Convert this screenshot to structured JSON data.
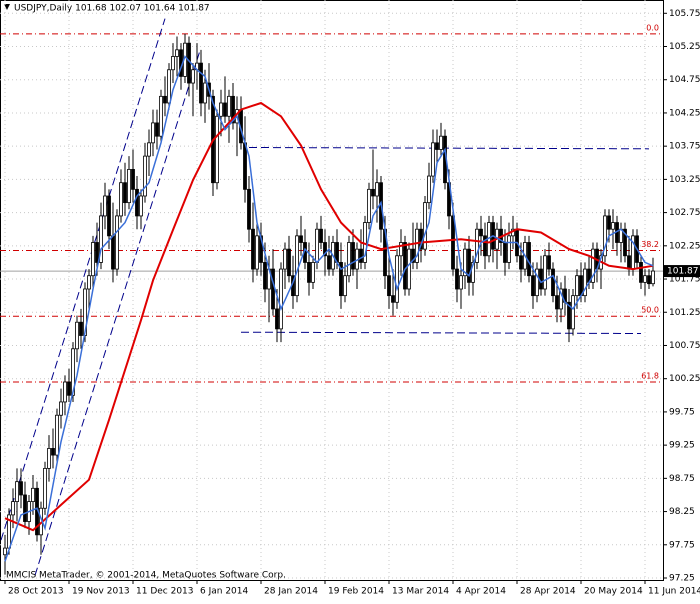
{
  "chart_data": {
    "type": "candlestick",
    "title": "USDJPY,Daily  101.68 102.07 101.64 101.87",
    "footer": "MMCIS MetaTrader, © 2001-2014, MetaQuotes Software Corp.",
    "ylim": [
      97.22,
      105.95
    ],
    "xlim": [
      -1.25,
      164.5
    ],
    "yticks": [
      97.25,
      97.75,
      98.25,
      98.75,
      99.25,
      99.75,
      100.25,
      100.75,
      101.25,
      101.75,
      102.25,
      102.75,
      103.25,
      103.75,
      104.25,
      104.75,
      105.25,
      105.75
    ],
    "xticks": [
      {
        "value": 0,
        "label": "28 Oct 2013"
      },
      {
        "value": 16,
        "label": "19 Nov 2013"
      },
      {
        "value": 32,
        "label": "11 Dec 2013"
      },
      {
        "value": 48,
        "label": "6 Jan 2014"
      },
      {
        "value": 64,
        "label": "28 Jan 2014"
      },
      {
        "value": 80,
        "label": "19 Feb 2014"
      },
      {
        "value": 96,
        "label": "13 Mar 2014"
      },
      {
        "value": 112,
        "label": "4 Apr 2014"
      },
      {
        "value": 128,
        "label": "28 Apr 2014"
      },
      {
        "value": 144,
        "label": "20 May 2014"
      },
      {
        "value": 160,
        "label": "11 Jun 2014"
      }
    ],
    "current_price": {
      "value": 101.87,
      "label": "101.87"
    },
    "fib_levels": [
      {
        "label": "0.0",
        "value": 105.44
      },
      {
        "label": "38.2",
        "value": 102.18
      },
      {
        "label": "50.0",
        "value": 101.19
      },
      {
        "label": "61.8",
        "value": 100.2
      }
    ],
    "fib_color": "#d00000",
    "trend_lines": [
      {
        "color": "#00008b",
        "points": [
          [
            -1,
            97.82
          ],
          [
            40,
            105.67
          ]
        ]
      },
      {
        "color": "#00008b",
        "points": [
          [
            7.5,
            97.29
          ],
          [
            48.75,
            105.19
          ]
        ]
      },
      {
        "color": "#00008b",
        "points": [
          [
            61,
            103.73
          ],
          [
            161,
            103.71
          ]
        ]
      },
      {
        "color": "#00008b",
        "points": [
          [
            59,
            100.95
          ],
          [
            159,
            100.93
          ]
        ]
      }
    ],
    "ma_lines": [
      {
        "color": "#e00000",
        "x": [
          0,
          7,
          14,
          21,
          26,
          30,
          34,
          37,
          42,
          47,
          52,
          59,
          64,
          69,
          74,
          79,
          84,
          89,
          94,
          104,
          114,
          121,
          128,
          134,
          141,
          146,
          151,
          157,
          162
        ],
        "values": [
          98.15,
          97.97,
          98.35,
          98.73,
          99.63,
          100.38,
          101.13,
          101.73,
          102.49,
          103.24,
          103.84,
          104.3,
          104.4,
          104.2,
          103.76,
          103.1,
          102.6,
          102.3,
          102.2,
          102.3,
          102.35,
          102.3,
          102.5,
          102.45,
          102.2,
          102.1,
          101.95,
          101.9,
          101.95
        ]
      },
      {
        "color": "#3a6fd8",
        "x": [
          0,
          4,
          8,
          10,
          14,
          18,
          22,
          24,
          27,
          30,
          33,
          36,
          39,
          42,
          45,
          48,
          50,
          52,
          55,
          58,
          61,
          63,
          66,
          69,
          72,
          75,
          78,
          81,
          84,
          87,
          90,
          92,
          94,
          96,
          98,
          100,
          103,
          106,
          108,
          110,
          112,
          114,
          116,
          119,
          122,
          125,
          128,
          131,
          134,
          137,
          140,
          142,
          145,
          148,
          151,
          154,
          157,
          160,
          162
        ],
        "values": [
          97.5,
          98.2,
          98.3,
          98.0,
          99.3,
          100.3,
          101.6,
          102.2,
          102.4,
          102.6,
          103.0,
          103.2,
          103.8,
          104.6,
          105.1,
          104.9,
          104.8,
          104.4,
          104.0,
          104.2,
          103.6,
          102.6,
          101.9,
          101.3,
          101.7,
          102.2,
          102.0,
          102.2,
          101.9,
          102.0,
          102.1,
          102.7,
          102.9,
          102.1,
          101.6,
          101.9,
          102.1,
          102.6,
          103.5,
          103.7,
          102.8,
          101.9,
          101.8,
          102.3,
          102.4,
          102.3,
          102.3,
          102.0,
          101.7,
          101.8,
          101.4,
          101.3,
          101.6,
          101.9,
          102.4,
          102.5,
          102.3,
          102.0,
          101.95
        ]
      }
    ],
    "candles": [
      [
        97.6,
        97.9,
        97.3,
        97.7
      ],
      [
        97.7,
        98.3,
        97.6,
        98.2
      ],
      [
        98.2,
        98.6,
        98.0,
        98.4
      ],
      [
        98.4,
        98.9,
        98.1,
        98.7
      ],
      [
        98.7,
        98.9,
        98.3,
        98.5
      ],
      [
        98.5,
        98.7,
        98.0,
        98.1
      ],
      [
        98.1,
        98.5,
        97.9,
        98.4
      ],
      [
        98.4,
        98.8,
        98.2,
        98.6
      ],
      [
        98.6,
        98.7,
        97.8,
        97.9
      ],
      [
        97.9,
        98.4,
        97.6,
        98.3
      ],
      [
        98.3,
        99.0,
        98.2,
        98.9
      ],
      [
        98.9,
        99.4,
        98.7,
        99.2
      ],
      [
        99.2,
        99.5,
        98.9,
        99.1
      ],
      [
        99.1,
        99.8,
        99.0,
        99.7
      ],
      [
        99.7,
        100.1,
        99.5,
        99.9
      ],
      [
        99.9,
        100.3,
        99.7,
        100.2
      ],
      [
        100.2,
        100.4,
        99.9,
        100.0
      ],
      [
        100.0,
        100.8,
        99.9,
        100.7
      ],
      [
        100.7,
        101.2,
        100.5,
        101.1
      ],
      [
        101.1,
        101.3,
        100.7,
        100.9
      ],
      [
        100.9,
        101.7,
        100.8,
        101.6
      ],
      [
        101.6,
        101.9,
        101.3,
        101.8
      ],
      [
        101.8,
        102.4,
        101.6,
        102.3
      ],
      [
        102.3,
        102.6,
        101.8,
        102.0
      ],
      [
        102.0,
        102.9,
        101.9,
        102.7
      ],
      [
        102.7,
        103.2,
        102.5,
        103.0
      ],
      [
        103.0,
        103.1,
        102.2,
        102.4
      ],
      [
        102.4,
        102.9,
        101.7,
        101.9
      ],
      [
        101.9,
        102.8,
        101.8,
        102.7
      ],
      [
        102.7,
        103.4,
        102.6,
        103.2
      ],
      [
        103.2,
        103.5,
        102.7,
        102.9
      ],
      [
        102.9,
        103.6,
        102.8,
        103.4
      ],
      [
        103.4,
        103.7,
        102.9,
        103.1
      ],
      [
        103.1,
        103.3,
        102.5,
        102.7
      ],
      [
        102.7,
        103.1,
        102.5,
        103.0
      ],
      [
        103.0,
        103.8,
        102.9,
        103.6
      ],
      [
        103.6,
        104.0,
        103.3,
        103.8
      ],
      [
        103.8,
        104.3,
        103.6,
        104.1
      ],
      [
        104.1,
        104.3,
        103.7,
        103.9
      ],
      [
        103.9,
        104.6,
        103.8,
        104.5
      ],
      [
        104.5,
        104.8,
        104.2,
        104.4
      ],
      [
        104.4,
        105.0,
        104.3,
        104.9
      ],
      [
        104.9,
        105.3,
        104.7,
        105.1
      ],
      [
        105.1,
        105.4,
        104.8,
        105.2
      ],
      [
        105.2,
        105.3,
        104.6,
        104.8
      ],
      [
        104.8,
        105.44,
        104.7,
        105.3
      ],
      [
        105.3,
        105.4,
        104.5,
        104.7
      ],
      [
        104.7,
        105.0,
        104.2,
        104.9
      ],
      [
        104.9,
        105.3,
        104.6,
        105.0
      ],
      [
        105.0,
        105.2,
        104.2,
        104.4
      ],
      [
        104.4,
        104.9,
        104.1,
        104.7
      ],
      [
        104.7,
        105.0,
        104.3,
        104.5
      ],
      [
        104.5,
        104.6,
        103.0,
        103.2
      ],
      [
        103.2,
        104.3,
        103.1,
        104.2
      ],
      [
        104.2,
        104.6,
        103.9,
        104.4
      ],
      [
        104.4,
        104.8,
        104.1,
        104.2
      ],
      [
        104.2,
        104.6,
        103.8,
        104.5
      ],
      [
        104.5,
        104.7,
        104.0,
        104.1
      ],
      [
        104.1,
        104.5,
        103.6,
        104.3
      ],
      [
        104.3,
        104.5,
        103.7,
        103.8
      ],
      [
        103.8,
        104.2,
        102.9,
        103.1
      ],
      [
        103.1,
        103.3,
        102.3,
        102.5
      ],
      [
        102.5,
        102.9,
        101.7,
        101.9
      ],
      [
        101.9,
        102.6,
        101.8,
        102.4
      ],
      [
        102.4,
        102.6,
        101.8,
        102.0
      ],
      [
        102.0,
        102.3,
        101.4,
        101.6
      ],
      [
        101.6,
        102.1,
        101.1,
        101.9
      ],
      [
        101.9,
        102.2,
        101.2,
        101.3
      ],
      [
        101.3,
        101.6,
        100.8,
        101.0
      ],
      [
        101.0,
        102.0,
        100.8,
        101.9
      ],
      [
        101.9,
        102.3,
        101.6,
        102.2
      ],
      [
        102.2,
        102.4,
        101.7,
        101.8
      ],
      [
        101.8,
        102.1,
        101.3,
        101.5
      ],
      [
        101.5,
        102.5,
        101.4,
        102.4
      ],
      [
        102.4,
        102.7,
        102.1,
        102.3
      ],
      [
        102.3,
        102.5,
        101.9,
        102.0
      ],
      [
        102.0,
        102.3,
        101.5,
        101.7
      ],
      [
        101.7,
        102.1,
        101.6,
        102.0
      ],
      [
        102.0,
        102.6,
        101.9,
        102.5
      ],
      [
        102.5,
        102.7,
        102.2,
        102.3
      ],
      [
        102.3,
        102.5,
        101.8,
        102.1
      ],
      [
        102.1,
        102.4,
        101.8,
        101.9
      ],
      [
        101.9,
        102.4,
        101.8,
        102.3
      ],
      [
        102.3,
        102.5,
        101.9,
        102.0
      ],
      [
        102.0,
        102.3,
        101.3,
        101.5
      ],
      [
        101.5,
        102.0,
        101.4,
        101.8
      ],
      [
        101.8,
        102.4,
        101.7,
        102.3
      ],
      [
        102.3,
        102.5,
        101.8,
        101.9
      ],
      [
        101.9,
        102.3,
        101.6,
        102.2
      ],
      [
        102.2,
        102.5,
        101.9,
        102.0
      ],
      [
        102.0,
        102.7,
        101.9,
        102.6
      ],
      [
        102.6,
        103.2,
        102.5,
        103.1
      ],
      [
        103.1,
        103.7,
        102.8,
        103.0
      ],
      [
        103.0,
        103.4,
        102.6,
        103.2
      ],
      [
        103.2,
        103.3,
        102.3,
        102.5
      ],
      [
        102.5,
        102.7,
        101.6,
        101.8
      ],
      [
        101.8,
        102.1,
        101.3,
        101.5
      ],
      [
        101.5,
        101.9,
        101.2,
        101.4
      ],
      [
        101.4,
        102.2,
        101.3,
        102.1
      ],
      [
        102.1,
        102.5,
        101.8,
        102.3
      ],
      [
        102.3,
        102.4,
        101.5,
        101.6
      ],
      [
        101.6,
        102.3,
        101.5,
        102.2
      ],
      [
        102.2,
        102.6,
        101.9,
        102.0
      ],
      [
        102.0,
        102.6,
        101.9,
        102.5
      ],
      [
        102.5,
        102.6,
        102.0,
        102.2
      ],
      [
        102.2,
        103.0,
        102.1,
        102.9
      ],
      [
        102.9,
        103.5,
        102.8,
        103.3
      ],
      [
        103.3,
        104.0,
        103.2,
        103.8
      ],
      [
        103.8,
        104.0,
        103.5,
        103.7
      ],
      [
        103.7,
        104.1,
        103.6,
        103.9
      ],
      [
        103.9,
        104.0,
        103.1,
        103.2
      ],
      [
        103.2,
        103.4,
        102.5,
        102.7
      ],
      [
        102.7,
        102.9,
        101.8,
        101.9
      ],
      [
        101.9,
        102.1,
        101.4,
        101.6
      ],
      [
        101.6,
        102.0,
        101.3,
        101.8
      ],
      [
        101.8,
        102.3,
        101.6,
        102.2
      ],
      [
        102.2,
        102.4,
        101.5,
        101.7
      ],
      [
        101.7,
        102.1,
        101.5,
        102.0
      ],
      [
        102.0,
        102.6,
        101.9,
        102.5
      ],
      [
        102.5,
        102.7,
        102.1,
        102.4
      ],
      [
        102.4,
        102.6,
        101.9,
        102.1
      ],
      [
        102.1,
        102.7,
        102.0,
        102.6
      ],
      [
        102.6,
        102.7,
        102.0,
        102.2
      ],
      [
        102.2,
        102.6,
        101.9,
        102.5
      ],
      [
        102.5,
        102.7,
        102.1,
        102.3
      ],
      [
        102.3,
        102.5,
        101.8,
        102.0
      ],
      [
        102.0,
        102.6,
        101.9,
        102.4
      ],
      [
        102.4,
        102.7,
        102.2,
        102.5
      ],
      [
        102.5,
        102.6,
        102.0,
        102.1
      ],
      [
        102.1,
        102.3,
        101.7,
        101.9
      ],
      [
        101.9,
        102.4,
        101.8,
        102.3
      ],
      [
        102.3,
        102.4,
        101.7,
        101.8
      ],
      [
        101.8,
        102.0,
        101.3,
        101.5
      ],
      [
        101.5,
        102.0,
        101.4,
        101.9
      ],
      [
        101.9,
        102.1,
        101.5,
        101.6
      ],
      [
        101.6,
        102.2,
        101.5,
        102.1
      ],
      [
        102.1,
        102.3,
        101.8,
        101.9
      ],
      [
        101.9,
        102.0,
        101.4,
        101.5
      ],
      [
        101.5,
        101.8,
        101.1,
        101.3
      ],
      [
        101.3,
        101.7,
        101.1,
        101.6
      ],
      [
        101.6,
        101.8,
        101.2,
        101.4
      ],
      [
        101.4,
        101.6,
        100.8,
        101.0
      ],
      [
        101.0,
        101.6,
        100.9,
        101.5
      ],
      [
        101.5,
        101.9,
        101.3,
        101.8
      ],
      [
        101.8,
        102.0,
        101.4,
        101.5
      ],
      [
        101.5,
        102.0,
        101.4,
        101.9
      ],
      [
        101.9,
        102.1,
        101.6,
        101.7
      ],
      [
        101.7,
        102.3,
        101.6,
        102.2
      ],
      [
        102.2,
        102.3,
        101.7,
        101.9
      ],
      [
        101.9,
        102.2,
        101.6,
        102.1
      ],
      [
        102.1,
        102.8,
        102.0,
        102.7
      ],
      [
        102.7,
        102.8,
        102.3,
        102.5
      ],
      [
        102.5,
        102.8,
        102.2,
        102.6
      ],
      [
        102.6,
        102.7,
        102.1,
        102.3
      ],
      [
        102.3,
        102.6,
        102.0,
        102.5
      ],
      [
        102.5,
        102.6,
        102.0,
        102.1
      ],
      [
        102.1,
        102.4,
        101.8,
        101.9
      ],
      [
        101.9,
        102.5,
        101.8,
        102.4
      ],
      [
        102.4,
        102.5,
        101.9,
        102.0
      ],
      [
        102.0,
        102.1,
        101.6,
        101.7
      ],
      [
        101.7,
        101.9,
        101.5,
        101.8
      ],
      [
        101.8,
        101.9,
        101.6,
        101.68
      ],
      [
        101.68,
        102.07,
        101.64,
        101.87
      ]
    ],
    "bull_color": "#ffffff",
    "bear_color": "#000000",
    "wick_color": "#000000",
    "grid": true
  }
}
